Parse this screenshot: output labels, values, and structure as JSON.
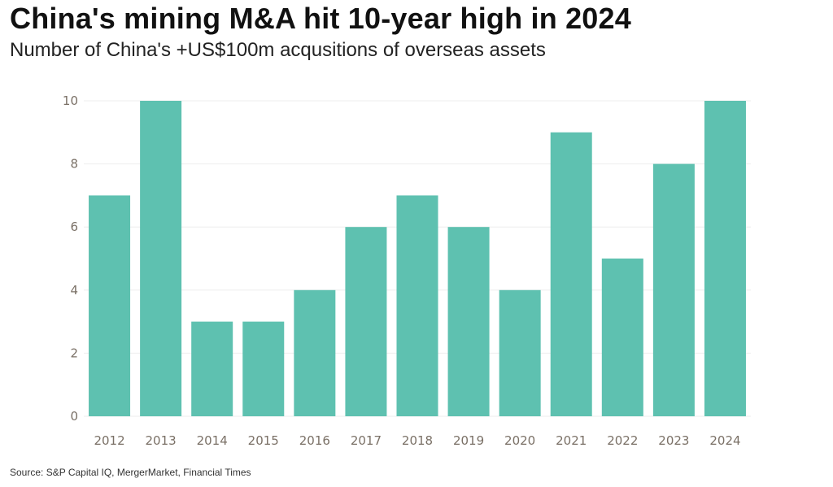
{
  "header": {
    "title": "China's mining M&A hit 10-year high in 2024",
    "subtitle": "Number of China's +US$100m acqusitions of overseas assets"
  },
  "footer": {
    "source": "Source: S&P Capital IQ, MergerMarket, Financial Times"
  },
  "colors": {
    "bar": "#5ec1b0",
    "grid": "#eeeeee",
    "tick": "#7a7066"
  },
  "chart_data": {
    "type": "bar",
    "title": "China's mining M&A hit 10-year high in 2024",
    "subtitle": "Number of China's +US$100m acqusitions of overseas assets",
    "xlabel": "",
    "ylabel": "",
    "categories": [
      "2012",
      "2013",
      "2014",
      "2015",
      "2016",
      "2017",
      "2018",
      "2019",
      "2020",
      "2021",
      "2022",
      "2023",
      "2024"
    ],
    "values": [
      7,
      10,
      3,
      3,
      4,
      6,
      7,
      6,
      4,
      9,
      5,
      8,
      10
    ],
    "ylim": [
      0,
      10
    ],
    "yticks": [
      0,
      2,
      4,
      6,
      8,
      10
    ],
    "grid": true,
    "legend": "none"
  }
}
